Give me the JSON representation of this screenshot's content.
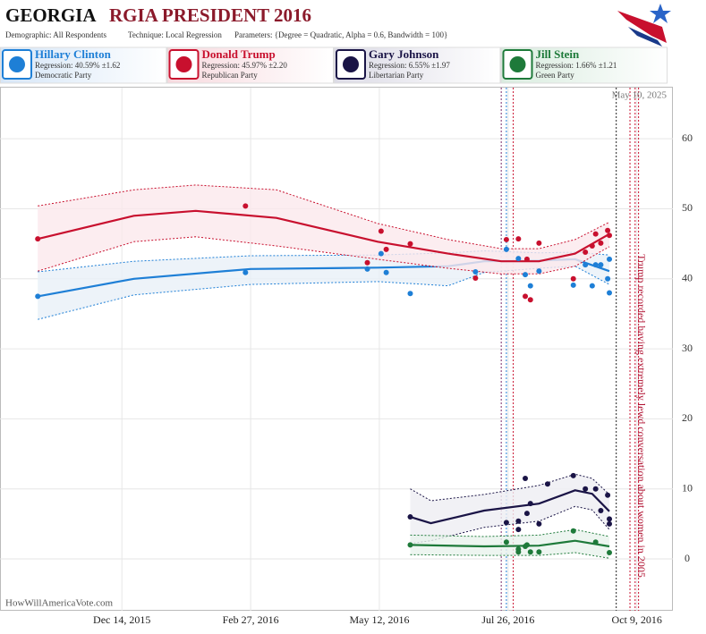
{
  "chart_data": {
    "type": "scatter",
    "title": {
      "state": "GEORGIA",
      "race": "RGIA PRESIDENT 2016"
    },
    "settings_line": [
      "Demographic: All Respondents",
      "Technique: Local Regression",
      "Parameters: {Degree = Quadratic, Alpha = 0.6, Bandwidth = 100}"
    ],
    "date_stamp": "May 10, 2025",
    "credit": "HowWillAmericaVote.com",
    "annotation": {
      "text": "Trump recorded having extremely lewd conversation about women in 2005",
      "x": "2016-10-07"
    },
    "xlim": [
      "2015-10-04",
      "2016-10-30"
    ],
    "xticks": [
      {
        "value": "2015-12-14",
        "label": "Dec 14, 2015"
      },
      {
        "value": "2016-02-27",
        "label": "Feb 27, 2016"
      },
      {
        "value": "2016-05-12",
        "label": "May 12, 2016"
      },
      {
        "value": "2016-07-26",
        "label": "Jul 26, 2016"
      },
      {
        "value": "2016-10-09",
        "label": "Oct 9, 2016"
      }
    ],
    "ylim": [
      -7.4,
      67.3
    ],
    "yticks": [
      0,
      10,
      20,
      30,
      40,
      50,
      60
    ],
    "grid": true,
    "events": [
      {
        "x": "2016-07-22",
        "color": "#7a2a6a"
      },
      {
        "x": "2016-07-25",
        "color": "#1e7fd6"
      },
      {
        "x": "2016-07-29",
        "color": "#c8102e"
      },
      {
        "x": "2016-09-27",
        "color": "#222222"
      },
      {
        "x": "2016-10-05",
        "color": "#c8102e"
      },
      {
        "x": "2016-10-08",
        "color": "#c8102e"
      },
      {
        "x": "2016-10-10",
        "color": "#c8102e"
      }
    ],
    "series": [
      {
        "name": "Hillary Clinton",
        "regression_label": "Regression: 40.59% ±1.62",
        "party": "Democratic Party",
        "color": "#1e7fd6",
        "band": "#e8f0f8",
        "x": [
          "2015-10-26",
          "2016-02-24",
          "2016-05-05",
          "2016-05-13",
          "2016-05-16",
          "2016-05-30",
          "2016-07-07",
          "2016-07-25",
          "2016-08-01",
          "2016-08-05",
          "2016-08-08",
          "2016-08-13",
          "2016-09-02",
          "2016-09-09",
          "2016-09-13",
          "2016-09-15",
          "2016-09-18",
          "2016-09-22",
          "2016-09-23",
          "2016-09-23"
        ],
        "values": [
          37.5,
          40.9,
          41.4,
          43.6,
          40.9,
          37.9,
          41,
          44.2,
          42.9,
          40.6,
          39,
          41.1,
          39.1,
          42,
          39,
          42,
          42,
          40,
          42.8,
          38
        ],
        "regression": {
          "x": [
            "2015-10-26",
            "2015-12-21",
            "2016-02-27",
            "2016-05-11",
            "2016-06-21",
            "2016-07-12",
            "2016-08-13",
            "2016-09-03",
            "2016-09-23"
          ],
          "values": [
            37.5,
            40,
            41.4,
            41.6,
            41.8,
            42.5,
            42.6,
            42.8,
            41.1
          ],
          "upper": [
            41,
            42.5,
            43.3,
            43.4,
            43.7,
            44,
            43.7,
            43.8,
            43.4
          ],
          "lower": [
            34.2,
            37.7,
            39.2,
            39.6,
            39,
            40.9,
            41.5,
            41.8,
            39.2
          ]
        }
      },
      {
        "name": "Donald Trump",
        "regression_label": "Regression: 45.97% ±2.20",
        "party": "Republican Party",
        "color": "#c8102e",
        "band": "#fbe9ec",
        "x": [
          "2015-10-26",
          "2016-02-24",
          "2016-05-13",
          "2016-05-05",
          "2016-05-16",
          "2016-05-30",
          "2016-07-07",
          "2016-07-25",
          "2016-08-01",
          "2016-08-13",
          "2016-08-06",
          "2016-08-05",
          "2016-08-08",
          "2016-09-02",
          "2016-09-09",
          "2016-09-13",
          "2016-09-15",
          "2016-09-18",
          "2016-09-22",
          "2016-09-23"
        ],
        "values": [
          45.7,
          50.4,
          46.8,
          42.3,
          44.2,
          45,
          40.1,
          45.6,
          45.7,
          45.1,
          42.8,
          37.5,
          37,
          40,
          43.8,
          44.7,
          46.4,
          45.1,
          46.9,
          46.2
        ],
        "regression": {
          "x": [
            "2015-10-26",
            "2015-12-21",
            "2016-01-26",
            "2016-03-13",
            "2016-05-11",
            "2016-06-21",
            "2016-07-22",
            "2016-08-13",
            "2016-09-03",
            "2016-09-23"
          ],
          "values": [
            45.7,
            49,
            49.7,
            48.7,
            45.3,
            43.6,
            42.5,
            42.5,
            43.6,
            46.4
          ],
          "upper": [
            50.4,
            52.7,
            53.4,
            52.7,
            47.9,
            45.6,
            44.3,
            44.3,
            45.6,
            48.1
          ],
          "lower": [
            41.1,
            45.3,
            46,
            44.7,
            42.8,
            41.5,
            40.7,
            40.7,
            41.8,
            44.6
          ]
        }
      },
      {
        "name": "Gary Johnson",
        "regression_label": "Regression: 6.55% ±1.97",
        "party": "Libertarian Party",
        "color": "#1a1446",
        "band": "#eeeef3",
        "x": [
          "2016-05-30",
          "2016-07-25",
          "2016-08-01",
          "2016-08-01",
          "2016-08-05",
          "2016-08-08",
          "2016-08-06",
          "2016-08-13",
          "2016-08-18",
          "2016-09-02",
          "2016-09-09",
          "2016-09-15",
          "2016-09-18",
          "2016-09-22",
          "2016-09-23",
          "2016-09-23"
        ],
        "values": [
          6,
          5.2,
          5.4,
          4.2,
          11.5,
          7.9,
          6.5,
          5,
          10.7,
          11.9,
          10,
          10,
          6.9,
          9.1,
          5.7,
          5
        ],
        "regression": {
          "x": [
            "2016-05-30",
            "2016-06-11",
            "2016-07-12",
            "2016-08-13",
            "2016-09-03",
            "2016-09-13",
            "2016-09-23"
          ],
          "values": [
            6,
            5.1,
            6.9,
            7.9,
            9.8,
            9.3,
            6.8
          ],
          "upper": [
            10,
            8.3,
            9.2,
            10.5,
            12.1,
            11.5,
            9.2
          ],
          "lower": [
            2.2,
            2.6,
            4.5,
            5.4,
            7.5,
            7,
            4.2
          ]
        }
      },
      {
        "name": "Jill Stein",
        "regression_label": "Regression: 1.66% ±1.21",
        "party": "Green Party",
        "color": "#1e7a3a",
        "band": "#e9f3ec",
        "x": [
          "2016-05-30",
          "2016-07-25",
          "2016-08-01",
          "2016-08-01",
          "2016-08-05",
          "2016-08-08",
          "2016-08-13",
          "2016-08-06",
          "2016-09-02",
          "2016-09-15",
          "2016-09-23"
        ],
        "values": [
          2,
          2.4,
          1.4,
          1,
          1.8,
          1,
          1,
          2,
          4,
          2.4,
          0.9
        ],
        "regression": {
          "x": [
            "2016-05-30",
            "2016-07-12",
            "2016-08-13",
            "2016-09-03",
            "2016-09-23"
          ],
          "values": [
            2,
            1.8,
            1.9,
            2.6,
            1.8
          ],
          "upper": [
            3.4,
            3.2,
            3.4,
            4.2,
            3.2
          ],
          "lower": [
            0.6,
            0.5,
            0.5,
            0.9,
            0.1
          ]
        }
      }
    ]
  }
}
